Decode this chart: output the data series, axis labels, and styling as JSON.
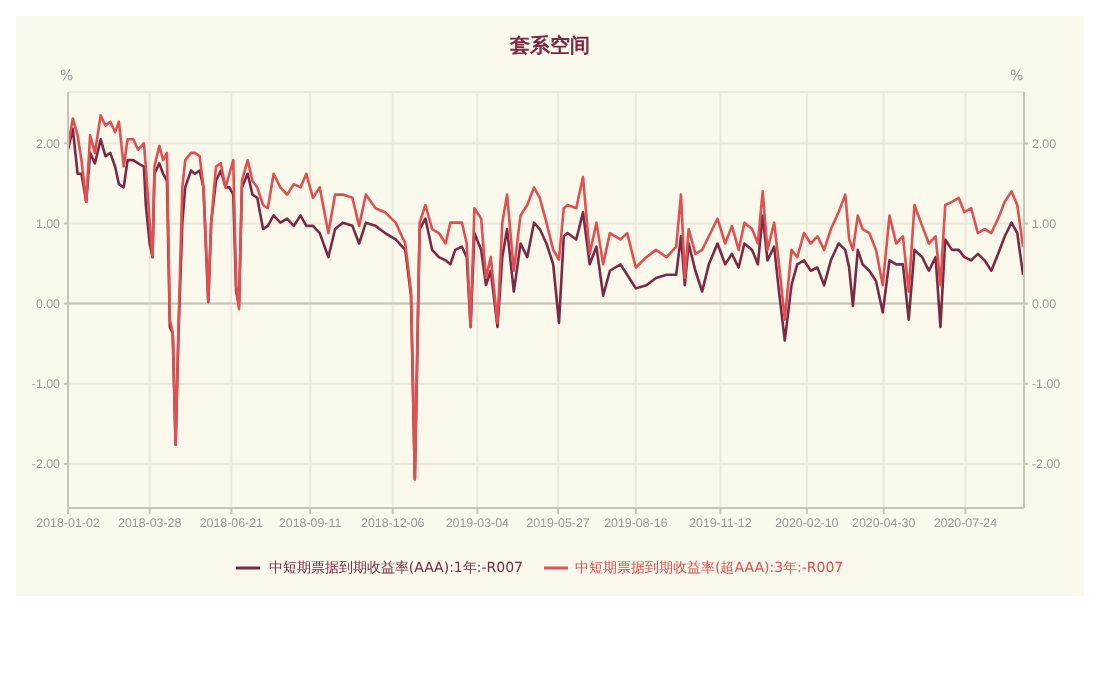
{
  "chart_data": {
    "type": "line",
    "title": "套系空间",
    "ylabel": "%",
    "y2label": "%",
    "x": [
      "2018-01-02",
      "2018-01-07",
      "2018-01-12",
      "2018-01-16",
      "2018-01-21",
      "2018-01-25",
      "2018-01-30",
      "2018-02-05",
      "2018-02-10",
      "2018-02-15",
      "2018-02-20",
      "2018-02-24",
      "2018-03-01",
      "2018-03-05",
      "2018-03-11",
      "2018-03-16",
      "2018-03-22",
      "2018-03-24",
      "2018-03-28",
      "2018-03-31",
      "2018-04-02",
      "2018-04-07",
      "2018-04-11",
      "2018-04-15",
      "2018-04-18",
      "2018-04-21",
      "2018-04-24",
      "2018-04-27",
      "2018-05-01",
      "2018-05-04",
      "2018-05-10",
      "2018-05-14",
      "2018-05-19",
      "2018-05-23",
      "2018-05-28",
      "2018-05-31",
      "2018-06-05",
      "2018-06-10",
      "2018-06-15",
      "2018-06-19",
      "2018-06-23",
      "2018-06-26",
      "2018-06-29",
      "2018-07-02",
      "2018-07-08",
      "2018-07-13",
      "2018-07-18",
      "2018-07-24",
      "2018-07-29",
      "2018-08-04",
      "2018-08-11",
      "2018-08-18",
      "2018-08-25",
      "2018-09-01",
      "2018-09-07",
      "2018-09-14",
      "2018-09-21",
      "2018-09-30",
      "2018-10-07",
      "2018-10-15",
      "2018-10-25",
      "2018-11-01",
      "2018-11-08",
      "2018-11-18",
      "2018-11-28",
      "2018-12-09",
      "2018-12-19",
      "2018-12-25",
      "2018-12-29",
      "2019-01-03",
      "2019-01-09",
      "2019-01-16",
      "2019-01-23",
      "2019-01-30",
      "2019-02-04",
      "2019-02-09",
      "2019-02-16",
      "2019-02-21",
      "2019-02-25",
      "2019-03-01",
      "2019-03-08",
      "2019-03-13",
      "2019-03-18",
      "2019-03-25",
      "2019-03-30",
      "2019-04-04",
      "2019-04-11",
      "2019-04-18",
      "2019-04-25",
      "2019-05-02",
      "2019-05-08",
      "2019-05-15",
      "2019-05-22",
      "2019-05-28",
      "2019-06-02",
      "2019-06-06",
      "2019-06-15",
      "2019-06-22",
      "2019-06-29",
      "2019-07-06",
      "2019-07-13",
      "2019-07-20",
      "2019-07-31",
      "2019-08-07",
      "2019-08-16",
      "2019-08-27",
      "2019-09-06",
      "2019-09-17",
      "2019-09-27",
      "2019-10-02",
      "2019-10-06",
      "2019-10-10",
      "2019-10-17",
      "2019-10-24",
      "2019-10-31",
      "2019-11-09",
      "2019-11-17",
      "2019-11-24",
      "2019-12-01",
      "2019-12-07",
      "2019-12-15",
      "2019-12-21",
      "2019-12-26",
      "2019-12-31",
      "2020-01-07",
      "2020-01-12",
      "2020-01-18",
      "2020-01-25",
      "2020-01-31",
      "2020-02-07",
      "2020-02-14",
      "2020-02-21",
      "2020-02-28",
      "2020-03-06",
      "2020-03-14",
      "2020-03-21",
      "2020-03-25",
      "2020-03-29",
      "2020-04-03",
      "2020-04-08",
      "2020-04-15",
      "2020-04-22",
      "2020-04-29",
      "2020-05-06",
      "2020-05-13",
      "2020-05-20",
      "2020-05-26",
      "2020-06-01",
      "2020-06-09",
      "2020-06-16",
      "2020-06-23",
      "2020-06-28",
      "2020-07-03",
      "2020-07-10",
      "2020-07-17",
      "2020-07-23",
      "2020-07-30",
      "2020-08-06",
      "2020-08-13",
      "2020-08-20",
      "2020-08-27",
      "2020-09-03",
      "2020-09-10",
      "2020-09-16",
      "2020-09-22"
    ],
    "series": [
      {
        "name": "中短期票据到期收益率(AAA):1年:-R007",
        "color": "#7b2a45",
        "values": [
          1.92,
          2.18,
          1.62,
          1.62,
          1.27,
          1.88,
          1.75,
          2.05,
          1.84,
          1.88,
          1.71,
          1.49,
          1.45,
          1.79,
          1.79,
          1.75,
          1.71,
          1.23,
          0.75,
          0.58,
          1.62,
          1.75,
          1.62,
          1.53,
          -0.29,
          -0.37,
          -1.76,
          -0.37,
          1.01,
          1.45,
          1.66,
          1.62,
          1.66,
          1.45,
          0.02,
          1.01,
          1.53,
          1.66,
          1.45,
          1.45,
          1.36,
          0.15,
          -0.03,
          1.45,
          1.62,
          1.36,
          1.32,
          0.93,
          0.97,
          1.1,
          1.01,
          1.06,
          0.97,
          1.1,
          0.97,
          0.97,
          0.88,
          0.58,
          0.93,
          1.01,
          0.97,
          0.75,
          1.01,
          0.97,
          0.88,
          0.8,
          0.67,
          0.1,
          -2.19,
          0.93,
          1.06,
          0.67,
          0.58,
          0.54,
          0.49,
          0.67,
          0.71,
          0.58,
          -0.29,
          0.88,
          0.67,
          0.23,
          0.41,
          -0.29,
          0.58,
          0.93,
          0.15,
          0.75,
          0.58,
          1.01,
          0.93,
          0.75,
          0.49,
          -0.24,
          0.84,
          0.88,
          0.8,
          1.14,
          0.49,
          0.71,
          0.1,
          0.41,
          0.49,
          0.36,
          0.19,
          0.23,
          0.32,
          0.36,
          0.36,
          0.84,
          0.23,
          0.75,
          0.41,
          0.15,
          0.49,
          0.75,
          0.49,
          0.62,
          0.45,
          0.75,
          0.67,
          0.49,
          1.1,
          0.54,
          0.71,
          0.15,
          -0.46,
          0.23,
          0.49,
          0.54,
          0.41,
          0.45,
          0.23,
          0.54,
          0.75,
          0.67,
          0.45,
          -0.03,
          0.67,
          0.49,
          0.41,
          0.28,
          -0.11,
          0.54,
          0.49,
          0.49,
          -0.2,
          0.67,
          0.58,
          0.41,
          0.58,
          -0.29,
          0.8,
          0.67,
          0.67,
          0.58,
          0.54,
          0.62,
          0.54,
          0.41,
          0.62,
          0.84,
          1.01,
          0.88,
          0.36
        ]
      },
      {
        "name": "中短期票据到期收益率(超AAA):3年:-R007",
        "color": "#e05050",
        "values": [
          1.97,
          2.31,
          2.1,
          1.79,
          1.27,
          2.1,
          1.88,
          2.35,
          2.22,
          2.27,
          2.14,
          2.27,
          1.71,
          2.05,
          2.05,
          1.92,
          2.0,
          1.71,
          1.01,
          0.58,
          1.71,
          1.97,
          1.79,
          1.88,
          -0.2,
          -0.37,
          -1.76,
          -0.29,
          1.45,
          1.79,
          1.88,
          1.88,
          1.84,
          1.45,
          0.02,
          1.01,
          1.71,
          1.75,
          1.45,
          1.62,
          1.79,
          0.23,
          -0.07,
          1.53,
          1.79,
          1.53,
          1.45,
          1.23,
          1.19,
          1.62,
          1.45,
          1.36,
          1.49,
          1.45,
          1.62,
          1.32,
          1.45,
          0.88,
          1.36,
          1.36,
          1.32,
          0.97,
          1.36,
          1.19,
          1.14,
          1.01,
          0.75,
          0.15,
          -2.19,
          1.01,
          1.23,
          0.93,
          0.88,
          0.75,
          1.01,
          1.01,
          1.01,
          0.75,
          -0.29,
          1.19,
          1.06,
          0.32,
          0.58,
          -0.24,
          1.01,
          1.36,
          0.41,
          1.1,
          1.23,
          1.45,
          1.32,
          1.01,
          0.67,
          0.55,
          1.19,
          1.23,
          1.19,
          1.58,
          0.62,
          1.01,
          0.49,
          0.88,
          0.8,
          0.88,
          0.45,
          0.58,
          0.67,
          0.58,
          0.71,
          1.36,
          0.32,
          0.93,
          0.62,
          0.67,
          0.84,
          1.06,
          0.75,
          0.97,
          0.67,
          1.01,
          0.93,
          0.75,
          1.4,
          0.67,
          1.01,
          0.49,
          -0.2,
          0.67,
          0.58,
          0.88,
          0.75,
          0.84,
          0.67,
          0.93,
          1.14,
          1.36,
          0.8,
          0.67,
          1.1,
          0.93,
          0.88,
          0.67,
          0.23,
          1.1,
          0.75,
          0.84,
          0.15,
          1.23,
          0.97,
          0.75,
          0.84,
          0.23,
          1.23,
          1.27,
          1.32,
          1.14,
          1.19,
          0.88,
          0.93,
          0.88,
          1.06,
          1.27,
          1.4,
          1.23,
          0.71
        ]
      }
    ],
    "xlim": [
      "2018-01-02",
      "2020-09-23"
    ],
    "xticks": [
      "2018-01-02",
      "2018-03-28",
      "2018-06-21",
      "2018-09-11",
      "2018-12-06",
      "2019-03-04",
      "2019-05-27",
      "2019-08-16",
      "2019-11-12",
      "2020-02-10",
      "2020-04-30",
      "2020-07-24"
    ],
    "ylim": [
      -2.55,
      2.64
    ],
    "yticks": [
      {
        "value": -2,
        "label": "-2.00"
      },
      {
        "value": -1,
        "label": "-1.00"
      },
      {
        "value": 0,
        "label": "0.00"
      },
      {
        "value": 1,
        "label": "1.00"
      },
      {
        "value": 2,
        "label": "2.00"
      }
    ],
    "y2lim": [
      -2.55,
      2.64
    ],
    "y2ticks": [
      {
        "value": -2,
        "label": "-2.00"
      },
      {
        "value": -1,
        "label": "-1.00"
      },
      {
        "value": 0,
        "label": "0.00"
      },
      {
        "value": 1,
        "label": "1.00"
      },
      {
        "value": 2,
        "label": "2.00"
      }
    ],
    "ref_lines": [
      {
        "axis": "y",
        "value": 0,
        "color": "#c8c4b8"
      }
    ],
    "grid": true,
    "legend": "bottom",
    "marker": "none",
    "line_style": "solid"
  }
}
